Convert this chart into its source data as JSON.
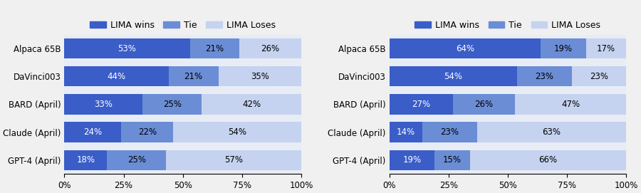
{
  "left_chart": {
    "categories": [
      "Alpaca 65B",
      "DaVinci003",
      "BARD (April)",
      "Claude (April)",
      "GPT-4 (April)"
    ],
    "wins": [
      53,
      44,
      33,
      24,
      18
    ],
    "ties": [
      21,
      21,
      25,
      22,
      25
    ],
    "losses": [
      26,
      35,
      42,
      54,
      57
    ]
  },
  "right_chart": {
    "categories": [
      "Alpaca 65B",
      "DaVinci003",
      "BARD (April)",
      "Claude (April)",
      "GPT-4 (April)"
    ],
    "wins": [
      64,
      54,
      27,
      14,
      19
    ],
    "ties": [
      19,
      23,
      26,
      23,
      15
    ],
    "losses": [
      17,
      23,
      47,
      63,
      66
    ]
  },
  "color_wins": "#3a5dc8",
  "color_ties": "#6b8dd6",
  "color_losses": "#c5d3f0",
  "legend_labels": [
    "LIMA wins",
    "Tie",
    "LIMA Loses"
  ],
  "xtick_labels": [
    "0%",
    "25%",
    "50%",
    "75%",
    "100%"
  ],
  "xtick_values": [
    0,
    25,
    50,
    75,
    100
  ],
  "bar_height": 0.72,
  "label_fontsize": 8.5,
  "tick_fontsize": 8.5,
  "legend_fontsize": 9,
  "bg_color": "#e8ecf5"
}
